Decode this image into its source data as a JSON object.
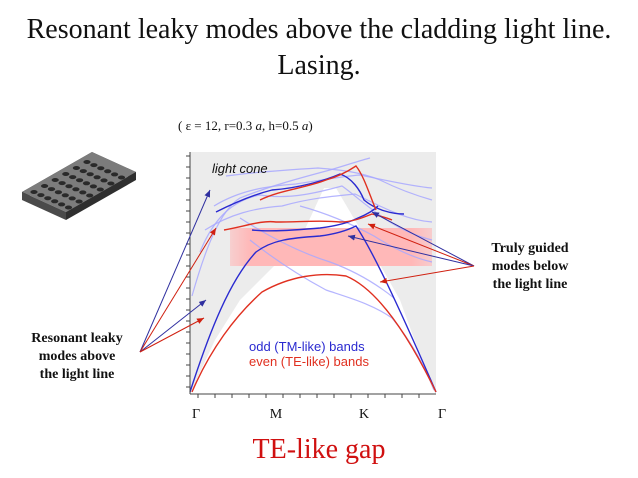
{
  "title": "Resonant leaky modes above the cladding light line. Lasing.",
  "params": {
    "open": "( ε = 12, r=0.3",
    "a1": "a",
    "mid": ", h=0.5",
    "a2": "a",
    "close": ")"
  },
  "plot": {
    "light_cone_label": "light cone",
    "x_ticks": [
      "Γ",
      "M",
      "K",
      "Γ"
    ],
    "legend": {
      "odd": "odd (TM-like) bands",
      "even": "even (TE-like) bands"
    },
    "colors": {
      "odd": "#2a2ad0",
      "even": "#e03020",
      "gap": "#ffb8b8",
      "light_cone": "#a8a8ff",
      "cone_fill": "#ececec",
      "arrow_blue": "#3030a0",
      "arrow_red": "#d02010"
    }
  },
  "labels": {
    "left": [
      "Resonant leaky",
      "modes above",
      "the light line"
    ],
    "right": [
      "Truly guided",
      "modes below",
      "the light line"
    ],
    "gap": "TE-like gap"
  },
  "icons": {
    "crystal": "photonic-crystal-slab-icon"
  }
}
